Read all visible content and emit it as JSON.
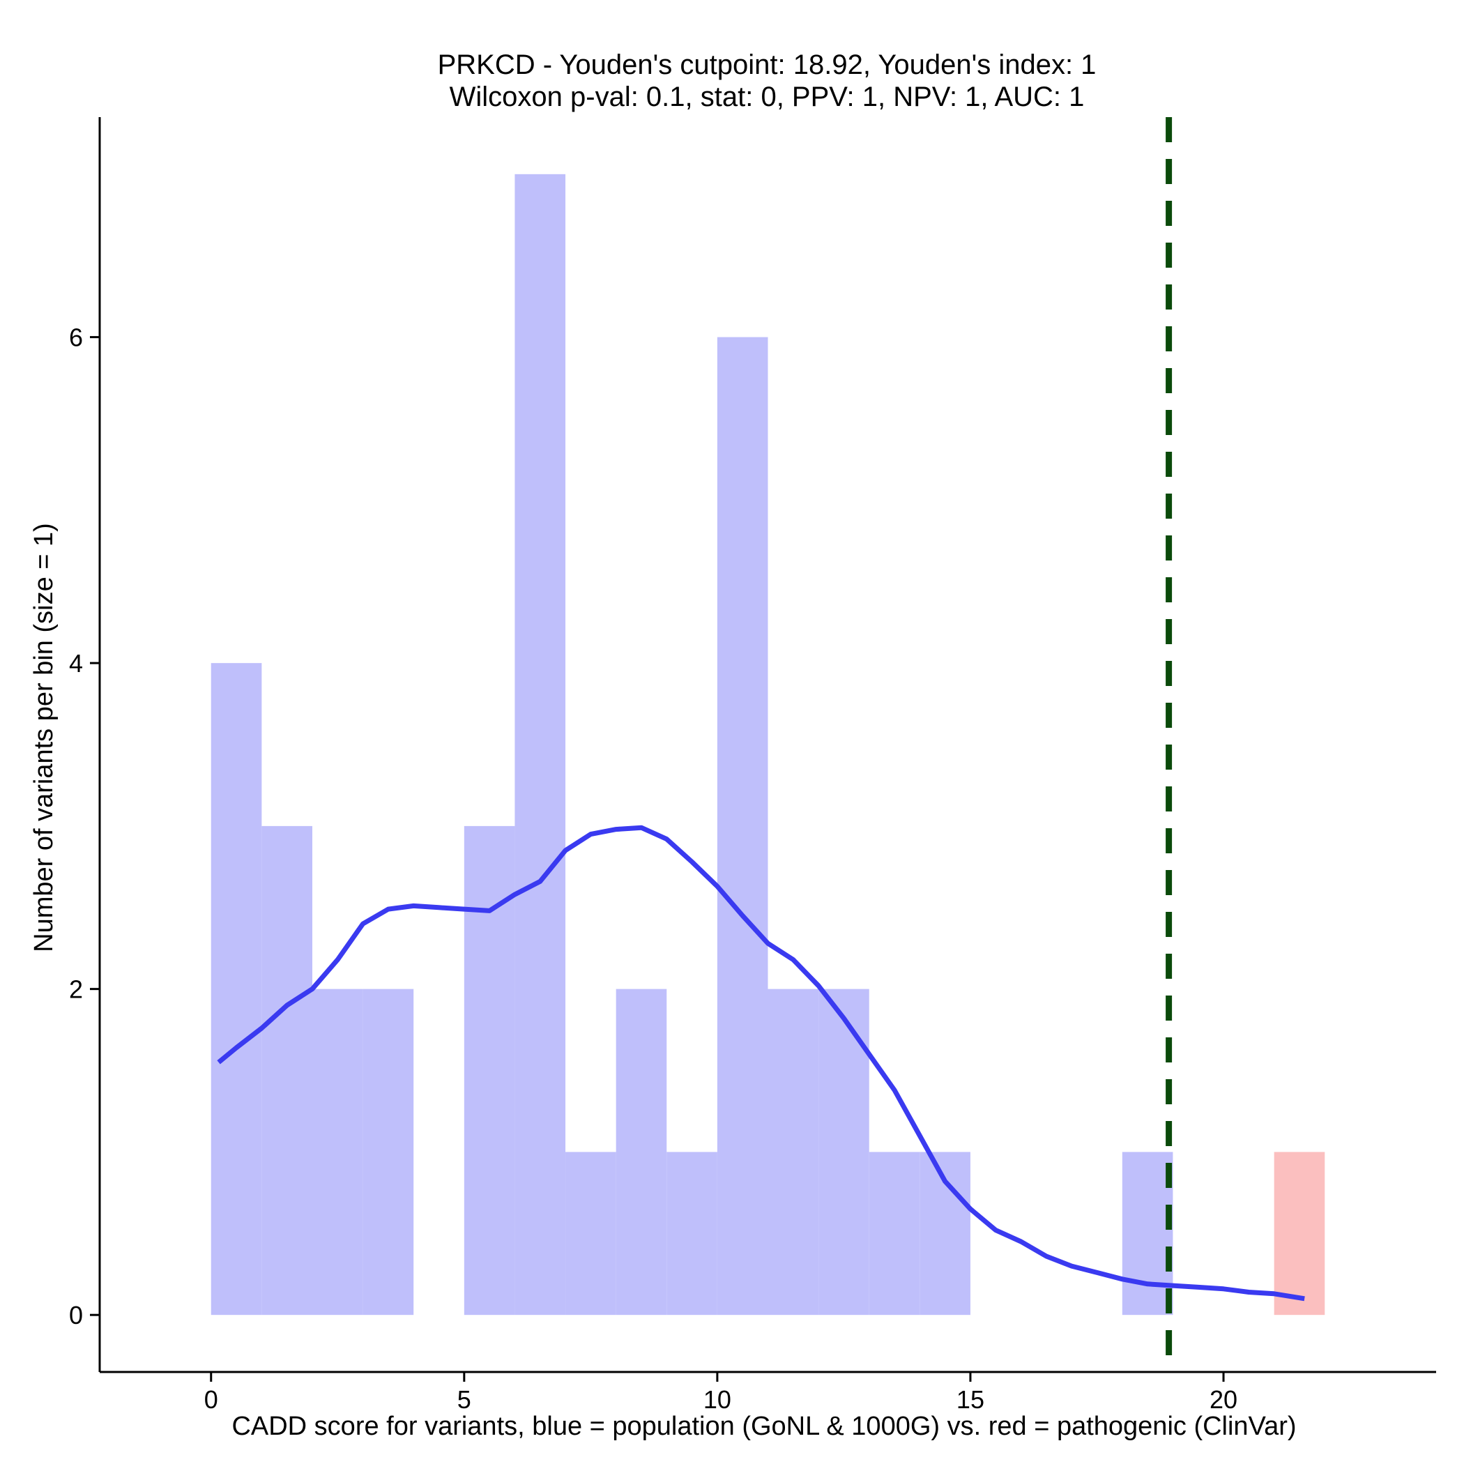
{
  "chart_data": {
    "type": "bar",
    "title": "PRKCD - Youden's cutpoint: 18.92, Youden's index: 1",
    "subtitle": "Wilcoxon p-val: 0.1, stat: 0, PPV: 1, NPV: 1, AUC: 1",
    "xlabel": "CADD score for variants, blue = population (GoNL & 1000G) vs. red = pathogenic (ClinVar)",
    "ylabel": "Number of variants per bin (size = 1)",
    "xlim": [
      -2.2,
      24.2
    ],
    "ylim": [
      -0.35,
      7.35
    ],
    "x_ticks": [
      0,
      5,
      10,
      15,
      20
    ],
    "y_ticks": [
      0,
      2,
      4,
      6
    ],
    "bin_size": 1,
    "grid": false,
    "colors": {
      "population": "#bfbffb",
      "pathogenic": "#fbbfbf",
      "density": "#3a3af0",
      "cutpoint": "#0b4a0b"
    },
    "series": [
      {
        "color_key": "population",
        "bins": [
          {
            "x0": 0,
            "x1": 1,
            "count": 4
          },
          {
            "x0": 1,
            "x1": 2,
            "count": 3
          },
          {
            "x0": 2,
            "x1": 3,
            "count": 2
          },
          {
            "x0": 3,
            "x1": 4,
            "count": 2
          },
          {
            "x0": 5,
            "x1": 6,
            "count": 3
          },
          {
            "x0": 6,
            "x1": 7,
            "count": 7
          },
          {
            "x0": 7,
            "x1": 8,
            "count": 1
          },
          {
            "x0": 8,
            "x1": 9,
            "count": 2
          },
          {
            "x0": 9,
            "x1": 10,
            "count": 1
          },
          {
            "x0": 10,
            "x1": 11,
            "count": 6
          },
          {
            "x0": 11,
            "x1": 12,
            "count": 2
          },
          {
            "x0": 12,
            "x1": 13,
            "count": 2
          },
          {
            "x0": 13,
            "x1": 14,
            "count": 1
          },
          {
            "x0": 14,
            "x1": 15,
            "count": 1
          },
          {
            "x0": 18,
            "x1": 19,
            "count": 1
          }
        ]
      },
      {
        "color_key": "pathogenic",
        "bins": [
          {
            "x0": 21,
            "x1": 22,
            "count": 1
          }
        ]
      }
    ],
    "density_curve": {
      "color_key": "density",
      "points": [
        [
          0.15,
          1.55
        ],
        [
          0.5,
          1.64
        ],
        [
          1.0,
          1.76
        ],
        [
          1.5,
          1.9
        ],
        [
          2.0,
          2.0
        ],
        [
          2.5,
          2.18
        ],
        [
          3.0,
          2.4
        ],
        [
          3.5,
          2.49
        ],
        [
          4.0,
          2.51
        ],
        [
          4.5,
          2.5
        ],
        [
          5.0,
          2.49
        ],
        [
          5.5,
          2.48
        ],
        [
          6.0,
          2.58
        ],
        [
          6.5,
          2.66
        ],
        [
          7.0,
          2.85
        ],
        [
          7.5,
          2.95
        ],
        [
          8.0,
          2.98
        ],
        [
          8.5,
          2.99
        ],
        [
          9.0,
          2.92
        ],
        [
          9.5,
          2.78
        ],
        [
          10.0,
          2.63
        ],
        [
          10.5,
          2.45
        ],
        [
          11.0,
          2.28
        ],
        [
          11.5,
          2.18
        ],
        [
          12.0,
          2.02
        ],
        [
          12.5,
          1.82
        ],
        [
          13.0,
          1.6
        ],
        [
          13.5,
          1.38
        ],
        [
          14.0,
          1.1
        ],
        [
          14.5,
          0.82
        ],
        [
          15.0,
          0.65
        ],
        [
          15.5,
          0.52
        ],
        [
          16.0,
          0.45
        ],
        [
          16.5,
          0.36
        ],
        [
          17.0,
          0.3
        ],
        [
          17.5,
          0.26
        ],
        [
          18.0,
          0.22
        ],
        [
          18.5,
          0.19
        ],
        [
          19.0,
          0.18
        ],
        [
          19.5,
          0.17
        ],
        [
          20.0,
          0.16
        ],
        [
          20.5,
          0.14
        ],
        [
          21.0,
          0.13
        ],
        [
          21.6,
          0.1
        ]
      ]
    },
    "cutpoint": {
      "x": 18.92,
      "color_key": "cutpoint",
      "style": "dashed"
    }
  }
}
